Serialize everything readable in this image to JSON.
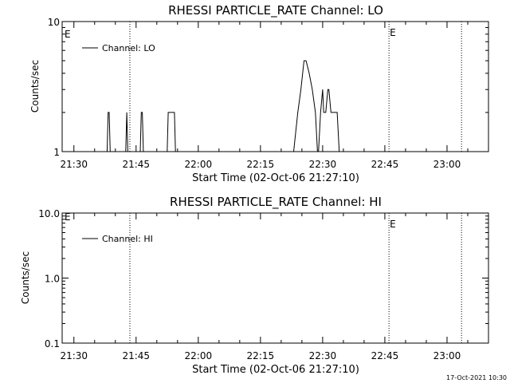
{
  "colors": {
    "background": "#ffffff",
    "ink": "#000000"
  },
  "footer_timestamp": "17-Oct-2021 10:30",
  "chart_data": [
    {
      "type": "line",
      "title": "RHESSI PARTICLE_RATE Channel: LO",
      "xlabel": "Start Time (02-Oct-06 21:27:10)",
      "ylabel": "Counts/sec",
      "legend": "Channel: LO",
      "legend_placement": "top-left",
      "y_scale": "log",
      "xlim": [
        "21:27:10",
        "23:10:00"
      ],
      "ylim": [
        1,
        10
      ],
      "x_ticks": [
        "21:30",
        "21:45",
        "22:00",
        "22:15",
        "22:30",
        "22:45",
        "23:00"
      ],
      "y_ticks": [
        "1",
        "10"
      ],
      "event_lines": [
        {
          "time": "21:43:30",
          "label": ""
        },
        {
          "time": "22:46:00",
          "label": "E"
        },
        {
          "time": "23:03:30",
          "label": ""
        }
      ],
      "left_marker_label": "E",
      "series": [
        {
          "name": "Channel: LO",
          "x": [
            "21:27:30",
            "21:38:00",
            "21:38:15",
            "21:38:30",
            "21:38:45",
            "21:42:30",
            "21:42:45",
            "21:43:00",
            "21:46:00",
            "21:46:15",
            "21:46:30",
            "21:46:45",
            "21:52:30",
            "21:52:45",
            "21:54:00",
            "21:54:15",
            "21:54:30",
            "22:22:30",
            "22:23:00",
            "22:24:00",
            "22:24:45",
            "22:25:30",
            "22:26:00",
            "22:26:45",
            "22:27:30",
            "22:28:15",
            "22:28:45",
            "22:29:00",
            "22:29:30",
            "22:30:00",
            "22:30:15",
            "22:30:45",
            "22:31:15",
            "22:31:30",
            "22:32:00",
            "22:32:30",
            "22:33:00",
            "22:33:30",
            "22:34:00",
            "22:34:30",
            "22:34:45",
            "22:35:15",
            "22:35:45",
            "22:36:00",
            "22:36:15",
            "22:36:30"
          ],
          "y": [
            1,
            1,
            2,
            2,
            1,
            1,
            2,
            1,
            1,
            2,
            2,
            1,
            1,
            2,
            2,
            2,
            1,
            1,
            1,
            2,
            3,
            5,
            5,
            4,
            3,
            2,
            1,
            1,
            2,
            3,
            2,
            2,
            3,
            3,
            2,
            2,
            2,
            2,
            1,
            1,
            1,
            1,
            1,
            1,
            1,
            1
          ]
        }
      ]
    },
    {
      "type": "line",
      "title": "RHESSI PARTICLE_RATE Channel: HI",
      "xlabel": "Start Time (02-Oct-06 21:27:10)",
      "ylabel": "Counts/sec",
      "legend": "Channel: HI",
      "legend_placement": "top-left",
      "y_scale": "log",
      "xlim": [
        "21:27:10",
        "23:10:00"
      ],
      "ylim": [
        0.1,
        10
      ],
      "x_ticks": [
        "21:30",
        "21:45",
        "22:00",
        "22:15",
        "22:30",
        "22:45",
        "23:00"
      ],
      "y_ticks": [
        "0.1",
        "1.0",
        "10.0"
      ],
      "event_lines": [
        {
          "time": "21:43:30",
          "label": ""
        },
        {
          "time": "22:46:00",
          "label": "E"
        },
        {
          "time": "23:03:30",
          "label": ""
        }
      ],
      "left_marker_label": "E",
      "series": [
        {
          "name": "Channel: HI",
          "x": [],
          "y": []
        }
      ]
    }
  ]
}
